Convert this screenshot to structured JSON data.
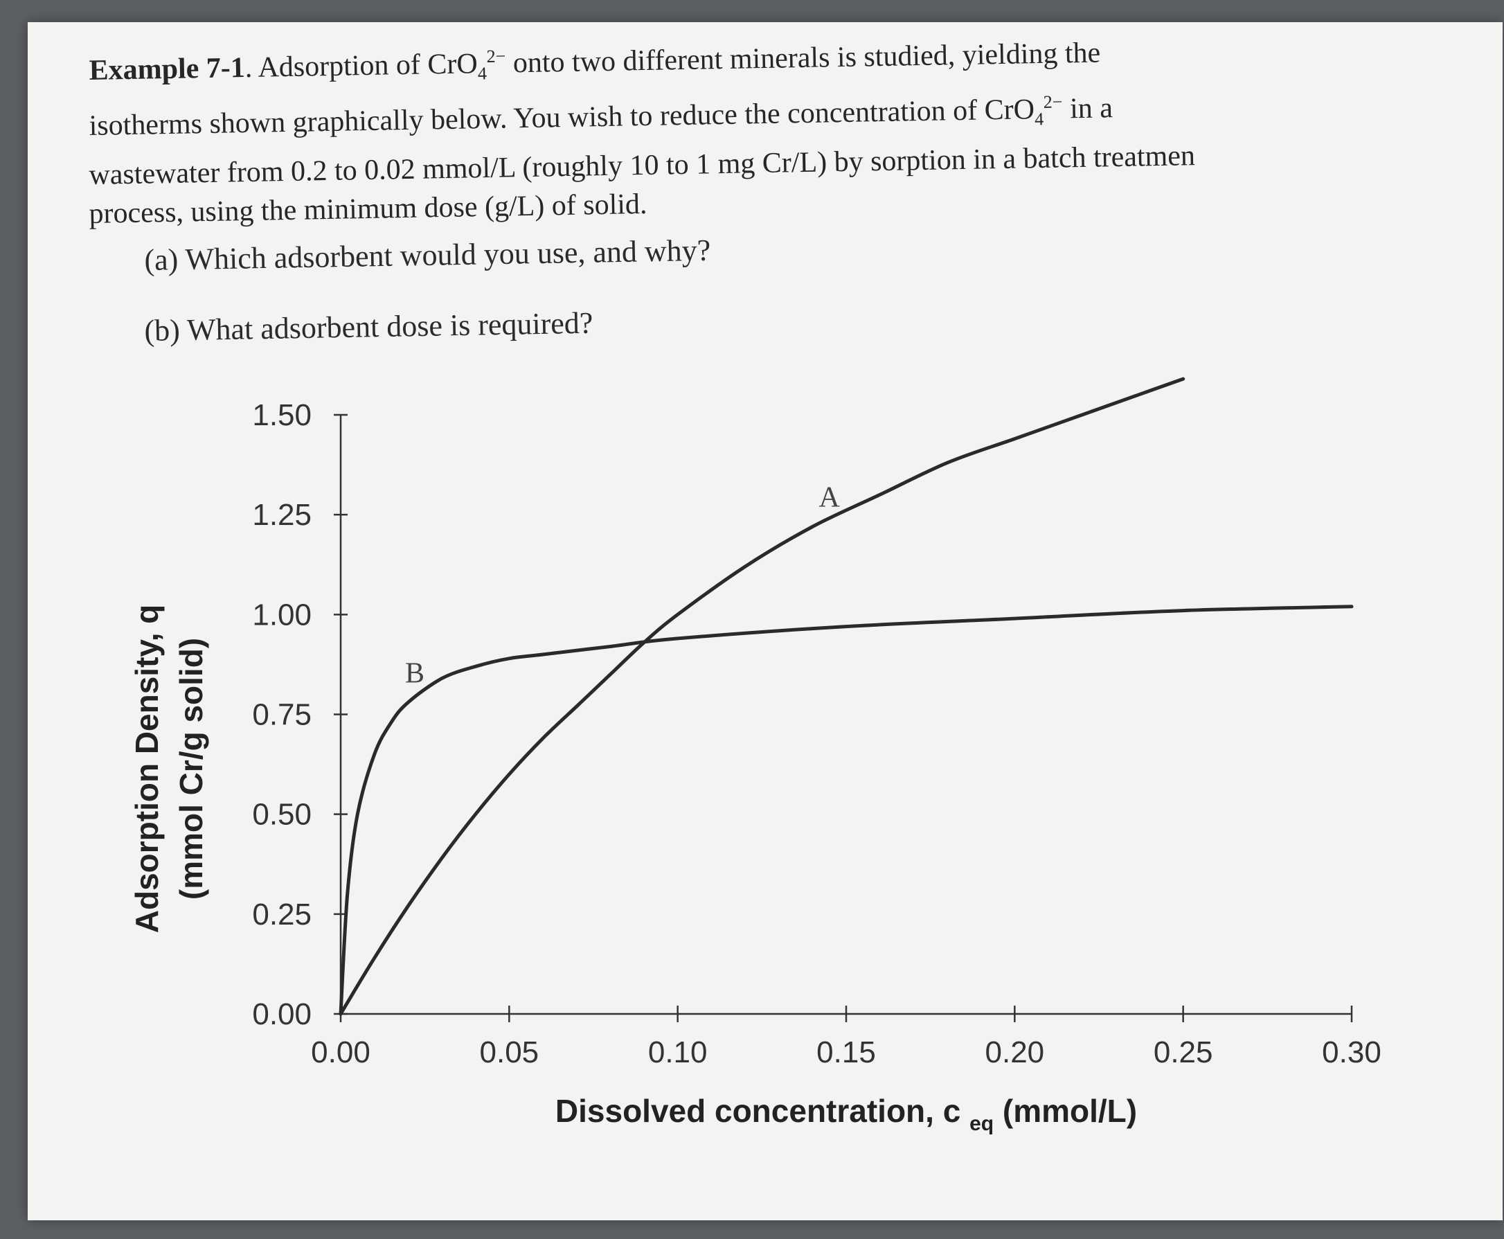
{
  "problem": {
    "lines": [
      {
        "bold": "Example 7-1",
        "pre": ". Adsorption of CrO",
        "sub": "4",
        "sup": "2−",
        "post": " onto two different minerals is studied, yielding the"
      },
      {
        "text": "isotherms shown graphically below. You wish to reduce the concentration of CrO",
        "sub": "4",
        "sup": "2−",
        "post": " in a"
      },
      {
        "text": "wastewater from 0.2 to 0.02 mmol/L (roughly 10 to 1 mg Cr/L) by sorption in a batch treatmen"
      },
      {
        "text": "process, using the minimum dose (g/L) of solid."
      }
    ],
    "questions": {
      "a": "(a) Which adsorbent would you use, and why?",
      "b": "(b) What adsorbent dose is required?"
    }
  },
  "chart_data": {
    "type": "line",
    "title": "",
    "xlabel": "Dissolved concentration, c",
    "xlabel_sub": "eq",
    "xlabel_unit": " (mmol/L)",
    "ylabel": "Adsorption Density, q",
    "ylabel_unit": "(mmol Cr/g solid)",
    "xlim": [
      0,
      0.3
    ],
    "ylim": [
      0,
      1.5
    ],
    "x_ticks": [
      "0.00",
      "0.05",
      "0.10",
      "0.15",
      "0.20",
      "0.25",
      "0.30"
    ],
    "y_ticks": [
      "0.00",
      "0.25",
      "0.50",
      "0.75",
      "1.00",
      "1.25",
      "1.50"
    ],
    "grid": false,
    "series": [
      {
        "name": "A",
        "x": [
          0,
          0.01,
          0.02,
          0.03,
          0.04,
          0.05,
          0.06,
          0.07,
          0.08,
          0.09,
          0.1,
          0.12,
          0.14,
          0.16,
          0.18,
          0.2,
          0.22,
          0.24,
          0.25
        ],
        "y": [
          0,
          0.14,
          0.27,
          0.39,
          0.5,
          0.6,
          0.69,
          0.77,
          0.85,
          0.93,
          1.0,
          1.12,
          1.22,
          1.3,
          1.38,
          1.44,
          1.5,
          1.56,
          1.59
        ]
      },
      {
        "name": "B",
        "x": [
          0,
          0.002,
          0.005,
          0.01,
          0.015,
          0.02,
          0.03,
          0.04,
          0.05,
          0.06,
          0.08,
          0.1,
          0.15,
          0.2,
          0.25,
          0.3
        ],
        "y": [
          0,
          0.3,
          0.5,
          0.65,
          0.73,
          0.78,
          0.84,
          0.87,
          0.89,
          0.9,
          0.92,
          0.94,
          0.97,
          0.99,
          1.01,
          1.02
        ]
      }
    ],
    "annotations": [
      {
        "text": "A",
        "x": 0.145,
        "y": 1.27
      },
      {
        "text": "B",
        "x": 0.022,
        "y": 0.83
      }
    ]
  }
}
